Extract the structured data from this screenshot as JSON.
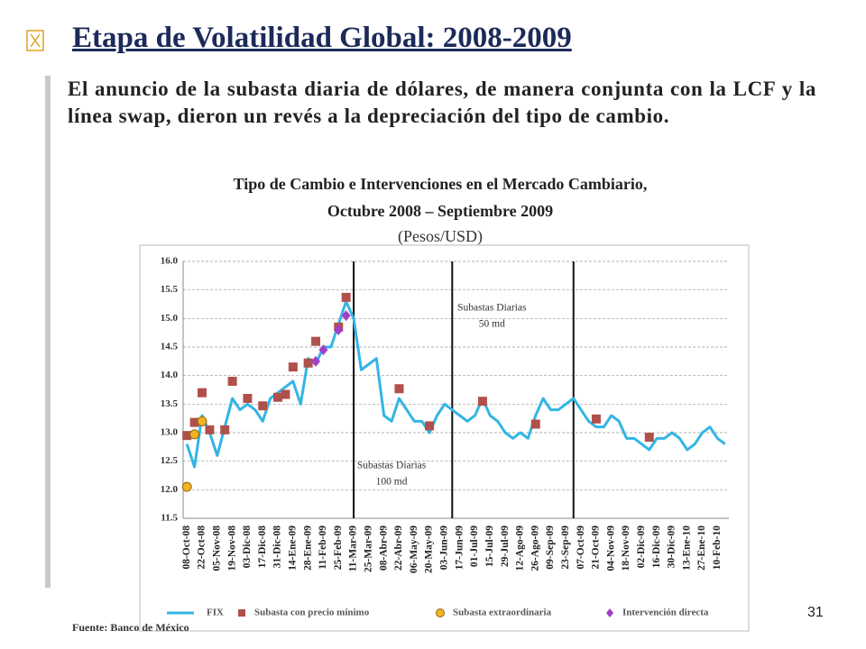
{
  "header": {
    "title": "Etapa de Volatilidad Global: 2008-2009"
  },
  "body": "El anuncio de la subasta diaria de dólares, de manera conjunta con la LCF y la línea swap, dieron un revés a la depreciación del tipo de cambio.",
  "page_number": "31",
  "chart_data": {
    "type": "line",
    "title": [
      "Tipo de Cambio e Intervenciones en el Mercado Cambiario,",
      "Octubre 2008 – Septiembre 2009"
    ],
    "subtitle": "(Pesos/USD)",
    "source": "Fuente: Banco de México",
    "categories": [
      "08-Oct-08",
      null,
      "22-Oct-08",
      null,
      "05-Nov-08",
      null,
      "19-Nov-08",
      null,
      "03-Dic-08",
      null,
      "17-Dic-08",
      null,
      "31-Dic-08",
      null,
      "14-Ene-09",
      null,
      "28-Ene-09",
      null,
      "11-Feb-09",
      null,
      "25-Feb-09",
      null,
      "11-Mar-09",
      null,
      "25-Mar-09",
      null,
      "08-Abr-09",
      null,
      "22-Abr-09",
      null,
      "06-May-09",
      null,
      "20-May-09",
      null,
      "03-Jun-09",
      null,
      "17-Jun-09",
      null,
      "01-Jul-09",
      null,
      "15-Jul-09",
      null,
      "29-Jul-09",
      null,
      "12-Ago-09",
      null,
      "26-Ago-09",
      null,
      "09-Sep-09",
      null,
      "23-Sep-09",
      null,
      "07-Oct-09",
      null,
      "21-Oct-09",
      null,
      "04-Nov-09",
      null,
      "18-Nov-09",
      null,
      "02-Dic-09",
      null,
      "16-Dic-09",
      null,
      "30-Dic-09",
      null,
      "13-Ene-10",
      null,
      "27-Ene-10",
      null,
      "10-Feb-10",
      null
    ],
    "series": [
      {
        "name": "FIX",
        "kind": "line",
        "color": "#33b5e5",
        "values": [
          12.8,
          12.4,
          13.3,
          13.0,
          12.6,
          13.1,
          13.6,
          13.4,
          13.5,
          13.4,
          13.2,
          13.6,
          13.7,
          13.8,
          13.9,
          13.5,
          14.3,
          14.2,
          14.5,
          14.5,
          14.9,
          15.3,
          15.0,
          14.1,
          14.2,
          14.3,
          13.3,
          13.2,
          13.6,
          13.4,
          13.2,
          13.2,
          13.0,
          13.3,
          13.5,
          13.4,
          13.3,
          13.2,
          13.3,
          13.6,
          13.3,
          13.2,
          13.0,
          12.9,
          13.0,
          12.9,
          13.3,
          13.6,
          13.4,
          13.4,
          13.5,
          13.6,
          13.4,
          13.2,
          13.1,
          13.1,
          13.3,
          13.2,
          12.9,
          12.9,
          12.8,
          12.7,
          12.9,
          12.9,
          13.0,
          12.9,
          12.7,
          12.8,
          13.0,
          13.1,
          12.9,
          12.8
        ]
      },
      {
        "name": "Subasta con precio mínimo",
        "kind": "square",
        "color": "#b0504a",
        "values": [
          12.95,
          13.18,
          13.7,
          13.05,
          null,
          13.05,
          13.9,
          null,
          13.6,
          null,
          13.47,
          null,
          13.62,
          13.67,
          14.15,
          null,
          14.22,
          14.6,
          null,
          null,
          14.85,
          15.37,
          null,
          null,
          null,
          null,
          null,
          null,
          13.77,
          null,
          null,
          null,
          13.12,
          null,
          null,
          null,
          null,
          null,
          null,
          13.55,
          null,
          null,
          null,
          null,
          null,
          null,
          13.15,
          null,
          null,
          null,
          null,
          null,
          null,
          null,
          13.24,
          null,
          null,
          null,
          null,
          null,
          null,
          12.92,
          null,
          null,
          null,
          null,
          null,
          null,
          null,
          null,
          null,
          null
        ]
      },
      {
        "name": "Subasta extraordinaria",
        "kind": "circle",
        "color": "#f0b323",
        "values": [
          12.05,
          12.97,
          13.2,
          null,
          null,
          null,
          null,
          null,
          null,
          null,
          null,
          null,
          null,
          null,
          null,
          null,
          null,
          null,
          null,
          null,
          null,
          null,
          null,
          null,
          null,
          null,
          null,
          null,
          null,
          null,
          null,
          null,
          null,
          null,
          null,
          null,
          null,
          null,
          null,
          null,
          null,
          null,
          null,
          null,
          null,
          null,
          null,
          null,
          null,
          null,
          null,
          null,
          null,
          null,
          null,
          null,
          null,
          null,
          null,
          null,
          null,
          null,
          null,
          null,
          null,
          null,
          null,
          null,
          null,
          null,
          null,
          null
        ]
      },
      {
        "name": "Intervención directa",
        "kind": "diamond",
        "color": "#a040c8",
        "values": [
          null,
          null,
          null,
          null,
          null,
          null,
          null,
          null,
          null,
          null,
          null,
          null,
          null,
          null,
          null,
          null,
          null,
          14.25,
          14.45,
          null,
          14.8,
          15.05,
          null,
          null,
          null,
          null,
          null,
          null,
          null,
          null,
          null,
          null,
          null,
          null,
          null,
          null,
          null,
          null,
          null,
          null,
          null,
          null,
          null,
          null,
          null,
          null,
          null,
          null,
          null,
          null,
          null,
          null,
          null,
          null,
          null,
          null,
          null,
          null,
          null,
          null,
          null,
          null,
          null,
          null,
          null,
          null,
          null,
          null,
          null,
          null,
          null,
          null
        ]
      }
    ],
    "annotations": [
      [
        "Subastas Diarias",
        "100 md"
      ],
      [
        "Subastas Diarias",
        "50 md"
      ]
    ],
    "ylim": [
      11.5,
      16.0
    ],
    "yticks": [
      11.5,
      {
        "value": 12.0,
        "label": "12.0"
      },
      12.5,
      {
        "value": 13.0,
        "label": "13.0"
      },
      13.5,
      {
        "value": 14.0,
        "label": "14.0"
      },
      14.5,
      {
        "value": 15.0,
        "label": "15.0"
      },
      15.5,
      {
        "value": 16.0,
        "label": "16.0"
      }
    ],
    "grid": true
  }
}
